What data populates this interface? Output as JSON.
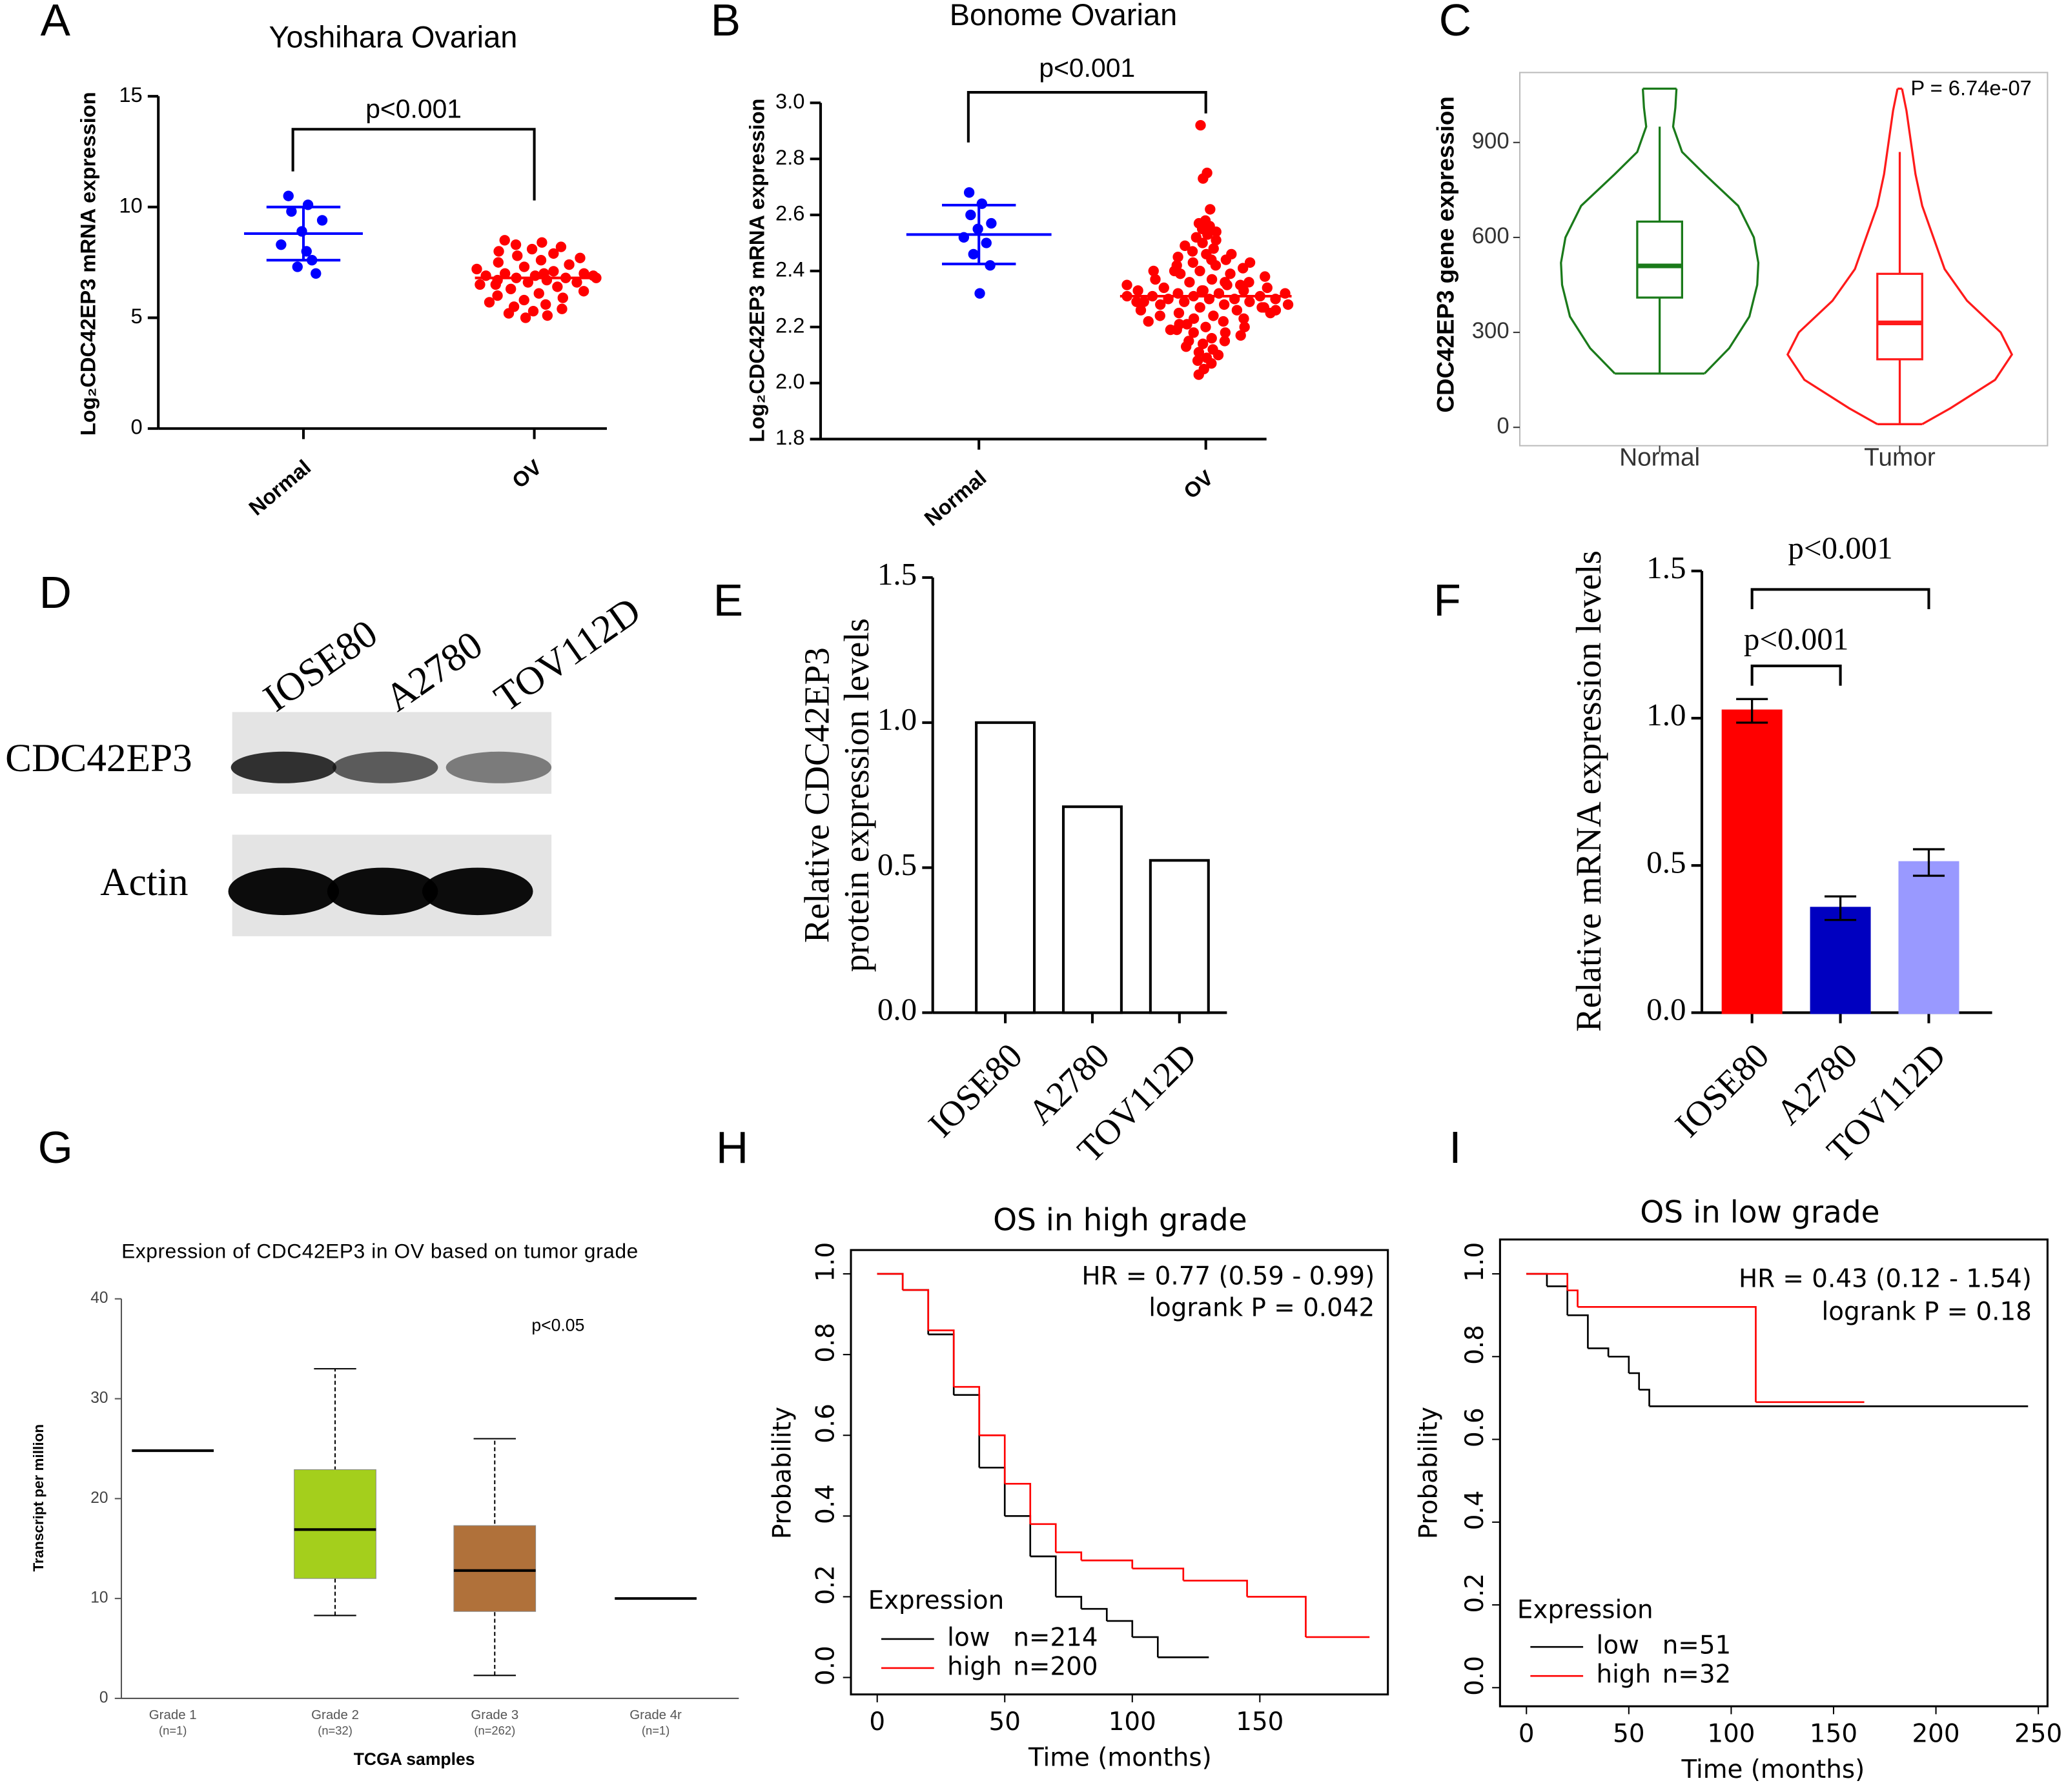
{
  "chart_data": [
    {
      "panel": "A",
      "type": "dot_plot",
      "title": "Yoshihara Ovarian",
      "ylabel": "Log₂CDC42EP3 mRNA expression",
      "categories": [
        "Normal",
        "OV"
      ],
      "ylim": [
        0,
        15
      ],
      "yticks": [
        0,
        5,
        10,
        15
      ],
      "groups": [
        {
          "color": "#0000ff",
          "values": [
            10.5,
            10.1,
            9.8,
            9.4,
            8.9,
            8.3,
            7.6,
            7.3,
            7.0,
            8.0
          ],
          "mean": 8.8,
          "sd": 1.2
        },
        {
          "color": "#ff0000",
          "values": [
            8.5,
            8.4,
            8.3,
            8.2,
            8.1,
            8.0,
            7.9,
            7.8,
            7.7,
            7.6,
            7.5,
            7.4,
            7.3,
            7.2,
            7.1,
            7.0,
            7.0,
            6.9,
            6.9,
            6.8,
            6.8,
            6.8,
            6.7,
            6.7,
            6.6,
            6.6,
            6.5,
            6.4,
            6.3,
            6.2,
            6.1,
            6.0,
            5.9,
            5.8,
            5.7,
            5.6,
            5.5,
            5.4,
            5.3,
            5.2,
            5.1,
            5.0,
            6.9,
            7.0,
            6.5
          ],
          "mean": 6.8
        }
      ],
      "annotations": [
        {
          "text": "p<0.001",
          "from": 0,
          "to": 1
        }
      ]
    },
    {
      "panel": "B",
      "type": "dot_plot",
      "title": "Bonome Ovarian",
      "ylabel": "Log₂CDC42EP3 mRNA expression",
      "categories": [
        "Normal",
        "OV"
      ],
      "ylim": [
        1.8,
        3.0
      ],
      "yticks": [
        1.8,
        {
          "value": 2.0,
          "label": "2.0"
        },
        2.2,
        2.4,
        2.6,
        2.8,
        {
          "value": 3.0,
          "label": "3.0"
        }
      ],
      "groups": [
        {
          "color": "#0000ff",
          "values": [
            2.68,
            2.64,
            2.6,
            2.57,
            2.55,
            2.52,
            2.5,
            2.46,
            2.42,
            2.32
          ],
          "mean": 2.53,
          "sd": 0.105
        },
        {
          "color": "#ff0000",
          "values": [
            2.92,
            2.75,
            2.73,
            2.62,
            2.58,
            2.57,
            2.56,
            2.55,
            2.54,
            2.53,
            2.52,
            2.51,
            2.5,
            2.49,
            2.48,
            2.47,
            2.46,
            2.46,
            2.45,
            2.44,
            2.43,
            2.43,
            2.42,
            2.42,
            2.41,
            2.4,
            2.4,
            2.39,
            2.39,
            2.38,
            2.37,
            2.37,
            2.36,
            2.36,
            2.35,
            2.35,
            2.34,
            2.34,
            2.33,
            2.33,
            2.33,
            2.32,
            2.32,
            2.32,
            2.31,
            2.31,
            2.31,
            2.31,
            2.3,
            2.3,
            2.3,
            2.3,
            2.29,
            2.29,
            2.29,
            2.28,
            2.28,
            2.28,
            2.27,
            2.27,
            2.26,
            2.26,
            2.25,
            2.25,
            2.24,
            2.24,
            2.23,
            2.23,
            2.22,
            2.22,
            2.21,
            2.2,
            2.2,
            2.19,
            2.18,
            2.18,
            2.17,
            2.16,
            2.15,
            2.15,
            2.14,
            2.13,
            2.12,
            2.11,
            2.1,
            2.09,
            2.08,
            2.07,
            2.05,
            2.03,
            2.36,
            2.4,
            2.27,
            2.33,
            2.29,
            2.35,
            2.21,
            2.26,
            2.44,
            2.19
          ],
          "mean": 2.31
        }
      ],
      "annotations": [
        {
          "text": "p<0.001",
          "from": 0,
          "to": 1
        }
      ]
    },
    {
      "panel": "C",
      "type": "violin",
      "ylabel": "CDC42EP3 gene expression",
      "categories": [
        "Normal",
        "Tumor"
      ],
      "ylim": [
        -58,
        1121
      ],
      "yticks": [
        0,
        300,
        600,
        900
      ],
      "annotation": "P = 6.74e-07",
      "groups": [
        {
          "color": "#1a7a1a",
          "density_y": [
            170,
            250,
            350,
            450,
            520,
            600,
            700,
            800,
            870,
            950,
            1010,
            1070
          ],
          "density_w": [
            0.4,
            0.62,
            0.8,
            0.87,
            0.88,
            0.84,
            0.7,
            0.4,
            0.2,
            0.12,
            0.14,
            0.15
          ],
          "box": {
            "min": 170,
            "q1": 410,
            "median": 510,
            "q3": 650,
            "max": 950
          }
        },
        {
          "color": "#ff1a1a",
          "density_y": [
            10,
            60,
            150,
            230,
            300,
            400,
            500,
            600,
            700,
            800,
            900,
            1000,
            1070
          ],
          "density_w": [
            0.2,
            0.45,
            0.85,
            1.0,
            0.9,
            0.6,
            0.4,
            0.3,
            0.2,
            0.14,
            0.1,
            0.06,
            0.02
          ],
          "box": {
            "min": 10,
            "q1": 215,
            "median": 330,
            "q3": 485,
            "max": 870
          }
        }
      ]
    },
    {
      "panel": "D",
      "type": "blot",
      "lanes": [
        "IOSE80",
        "A2780",
        "TOV112D"
      ],
      "rows": [
        "CDC42EP3",
        "Actin"
      ]
    },
    {
      "panel": "E",
      "type": "bar",
      "ylabel": [
        "Relative CDC42EP3",
        "protein expression levels"
      ],
      "categories": [
        "IOSE80",
        "A2780",
        "TOV112D"
      ],
      "values": [
        1.0,
        0.71,
        0.525
      ],
      "colors": [
        "#ffffff",
        "#ffffff",
        "#ffffff"
      ],
      "ylim": [
        0,
        1.5
      ],
      "yticks": [
        {
          "value": 0,
          "label": "0.0"
        },
        0.5,
        {
          "value": 1,
          "label": "1.0"
        },
        1.5
      ]
    },
    {
      "panel": "F",
      "type": "bar",
      "ylabel": [
        "Relative mRNA expression levels"
      ],
      "categories": [
        "IOSE80",
        "A2780",
        "TOV112D"
      ],
      "values": [
        1.025,
        0.355,
        0.51
      ],
      "errors": [
        0.04,
        0.04,
        0.045
      ],
      "colors": [
        "#ff0000",
        "#0000c0",
        "#9999ff"
      ],
      "ylim": [
        0,
        1.5
      ],
      "yticks": [
        {
          "value": 0,
          "label": "0.0"
        },
        0.5,
        {
          "value": 1,
          "label": "1.0"
        },
        1.5
      ],
      "annotations": [
        {
          "text": "p<0.001",
          "from": 0,
          "to": 2
        },
        {
          "text": "p<0.001",
          "from": 0,
          "to": 1
        }
      ]
    },
    {
      "panel": "G",
      "type": "box",
      "title": "Expression of CDC42EP3 in OV based on tumor grade",
      "xlabel": "TCGA samples",
      "ylabel": "Transcript per million",
      "categories": [
        "Grade 1",
        "Grade 2",
        "Grade 3",
        "Grade 4r"
      ],
      "category_counts": [
        "(n=1)",
        "(n=32)",
        "(n=262)",
        "(n=1)"
      ],
      "ylim": [
        0,
        40
      ],
      "yticks": [
        0,
        10,
        20,
        30,
        40
      ],
      "annotation": "p<0.05",
      "boxes": [
        {
          "median": 24.8
        },
        {
          "min": 8.3,
          "q1": 12,
          "median": 16.9,
          "q3": 22.9,
          "max": 33,
          "color": "#a4cf1c"
        },
        {
          "min": 2.3,
          "q1": 8.7,
          "median": 12.8,
          "q3": 17.3,
          "max": 26,
          "color": "#b0713a"
        },
        {
          "median": 10
        }
      ]
    },
    {
      "panel": "H",
      "type": "survival",
      "title": "OS in high grade",
      "xlabel": "Time (months)",
      "ylabel": "Probability",
      "xlim": [
        -10.3,
        200.2
      ],
      "ylim": [
        -0.042,
        1.059
      ],
      "xticks": [
        0,
        50,
        100,
        150
      ],
      "yticks": [
        {
          "value": 0,
          "label": "0.0"
        },
        0.2,
        0.4,
        0.6,
        0.8,
        {
          "value": 1,
          "label": "1.0"
        }
      ],
      "annotations": [
        "HR = 0.77 (0.59 - 0.99)",
        "logrank P = 0.042"
      ],
      "legend_title": "Expression",
      "series": [
        {
          "name": "low",
          "label": "n=214",
          "color": "#000000",
          "x": [
            0,
            10,
            20,
            30,
            40,
            50,
            60,
            70,
            80,
            90,
            100,
            110,
            130
          ],
          "values": [
            1,
            0.96,
            0.85,
            0.7,
            0.52,
            0.4,
            0.3,
            0.2,
            0.17,
            0.14,
            0.1,
            0.05,
            0.05
          ]
        },
        {
          "name": "high",
          "label": "n=200",
          "color": "#ff0000",
          "x": [
            0,
            10,
            20,
            30,
            40,
            50,
            60,
            70,
            80,
            100,
            120,
            145,
            168,
            193
          ],
          "values": [
            1,
            0.96,
            0.86,
            0.72,
            0.6,
            0.48,
            0.38,
            0.31,
            0.29,
            0.27,
            0.24,
            0.2,
            0.1,
            0.1
          ]
        }
      ]
    },
    {
      "panel": "I",
      "type": "survival",
      "title": "OS in low grade",
      "xlabel": "Time (months)",
      "ylabel": "Probability",
      "xlim": [
        -12.9,
        254.5
      ],
      "ylim": [
        -0.045,
        1.083
      ],
      "xticks": [
        0,
        50,
        100,
        150,
        200,
        250
      ],
      "yticks": [
        {
          "value": 0,
          "label": "0.0"
        },
        0.2,
        0.4,
        0.6,
        0.8,
        {
          "value": 1,
          "label": "1.0"
        }
      ],
      "annotations": [
        "HR = 0.43 (0.12 - 1.54)",
        "logrank P = 0.18"
      ],
      "legend_title": "Expression",
      "series": [
        {
          "name": "low",
          "label": "n=51",
          "color": "#000000",
          "x": [
            0,
            10,
            20,
            30,
            40,
            50,
            55,
            60,
            245
          ],
          "values": [
            1,
            0.97,
            0.9,
            0.82,
            0.8,
            0.76,
            0.72,
            0.68,
            0.68
          ]
        },
        {
          "name": "high",
          "label": "n=32",
          "color": "#ff0000",
          "x": [
            0,
            20,
            25,
            112,
            165
          ],
          "values": [
            1,
            0.96,
            0.92,
            0.69,
            0.69
          ]
        }
      ]
    }
  ]
}
